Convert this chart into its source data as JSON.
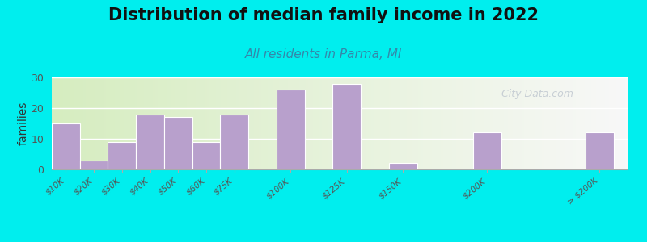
{
  "title": "Distribution of median family income in 2022",
  "subtitle": "All residents in Parma, MI",
  "ylabel": "families",
  "background_outer": "#00EEEE",
  "bar_color": "#b8a0cc",
  "bar_edge_color": "#ffffff",
  "categories": [
    "$10K",
    "$20K",
    "$30K",
    "$40K",
    "$50K",
    "$60K",
    "$75K",
    "$100K",
    "$125K",
    "$150K",
    "$200K",
    "> $200K"
  ],
  "values": [
    15,
    3,
    9,
    18,
    17,
    9,
    18,
    26,
    28,
    2,
    12,
    12
  ],
  "positions": [
    0,
    1,
    2,
    3,
    4,
    5,
    6,
    8,
    10,
    12,
    15,
    19
  ],
  "bar_width": 1.0,
  "ylim": [
    0,
    30
  ],
  "yticks": [
    0,
    10,
    20,
    30
  ],
  "xlim": [
    -0.5,
    20
  ],
  "watermark": "  City-Data.com",
  "title_fontsize": 15,
  "subtitle_fontsize": 11,
  "ylabel_fontsize": 10,
  "gradient_left": "#d6edc0",
  "gradient_right": "#f8f8f8"
}
